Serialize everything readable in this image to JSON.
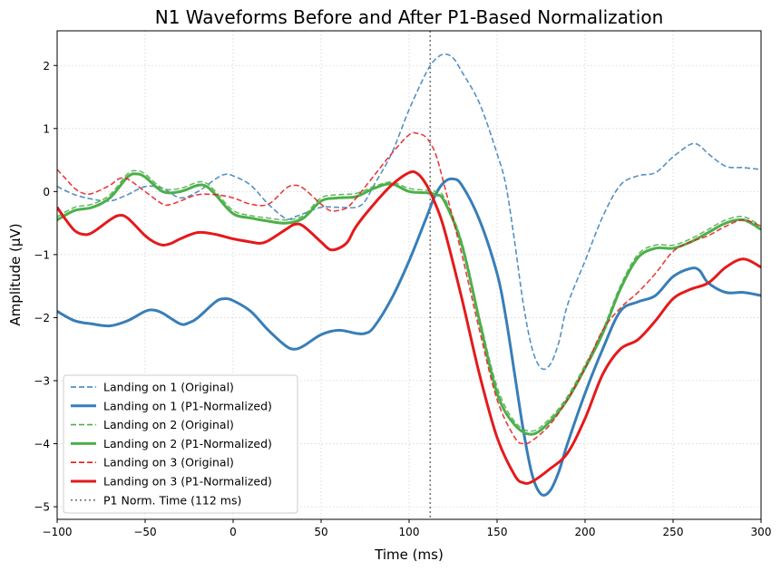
{
  "chart_data": {
    "type": "line",
    "title": "N1 Waveforms Before and After P1-Based Normalization",
    "xlabel": "Time (ms)",
    "ylabel": "Amplitude (μV)",
    "xlim": [
      -100,
      300
    ],
    "ylim": [
      -5.2,
      2.55
    ],
    "xticks": [
      -100,
      -50,
      0,
      50,
      100,
      150,
      200,
      250,
      300
    ],
    "yticks": [
      -5,
      -4,
      -3,
      -2,
      -1,
      0,
      1,
      2
    ],
    "grid": true,
    "legend_position": "lower-left",
    "vline": {
      "x": 112,
      "label": "P1 Norm. Time (112 ms)",
      "color": "#777777"
    },
    "series": [
      {
        "name": "Landing on 1 (Original)",
        "color": "#377eb8",
        "style": "dashed",
        "points": [
          [
            -100,
            0.08
          ],
          [
            -90,
            -0.05
          ],
          [
            -80,
            -0.12
          ],
          [
            -70,
            -0.15
          ],
          [
            -60,
            -0.05
          ],
          [
            -50,
            0.08
          ],
          [
            -40,
            0.05
          ],
          [
            -30,
            -0.1
          ],
          [
            -20,
            0.0
          ],
          [
            -10,
            0.2
          ],
          [
            -5,
            0.27
          ],
          [
            0,
            0.25
          ],
          [
            10,
            0.1
          ],
          [
            20,
            -0.2
          ],
          [
            30,
            -0.43
          ],
          [
            35,
            -0.4
          ],
          [
            40,
            -0.35
          ],
          [
            50,
            -0.25
          ],
          [
            60,
            -0.25
          ],
          [
            70,
            -0.25
          ],
          [
            75,
            -0.15
          ],
          [
            80,
            0.1
          ],
          [
            90,
            0.6
          ],
          [
            100,
            1.3
          ],
          [
            110,
            1.9
          ],
          [
            115,
            2.1
          ],
          [
            120,
            2.18
          ],
          [
            125,
            2.12
          ],
          [
            130,
            1.9
          ],
          [
            140,
            1.4
          ],
          [
            150,
            0.6
          ],
          [
            155,
            0.1
          ],
          [
            160,
            -0.8
          ],
          [
            165,
            -1.8
          ],
          [
            170,
            -2.5
          ],
          [
            175,
            -2.8
          ],
          [
            180,
            -2.75
          ],
          [
            185,
            -2.4
          ],
          [
            190,
            -1.8
          ],
          [
            200,
            -1.1
          ],
          [
            210,
            -0.4
          ],
          [
            220,
            0.1
          ],
          [
            230,
            0.25
          ],
          [
            240,
            0.3
          ],
          [
            250,
            0.55
          ],
          [
            260,
            0.75
          ],
          [
            265,
            0.73
          ],
          [
            270,
            0.6
          ],
          [
            280,
            0.4
          ],
          [
            290,
            0.38
          ],
          [
            300,
            0.35
          ]
        ]
      },
      {
        "name": "Landing on 1 (P1-Normalized)",
        "color": "#377eb8",
        "style": "solid",
        "points": [
          [
            -100,
            -1.9
          ],
          [
            -90,
            -2.05
          ],
          [
            -80,
            -2.1
          ],
          [
            -70,
            -2.13
          ],
          [
            -60,
            -2.05
          ],
          [
            -50,
            -1.9
          ],
          [
            -45,
            -1.88
          ],
          [
            -40,
            -1.93
          ],
          [
            -30,
            -2.1
          ],
          [
            -25,
            -2.08
          ],
          [
            -20,
            -2.0
          ],
          [
            -10,
            -1.75
          ],
          [
            -5,
            -1.7
          ],
          [
            0,
            -1.73
          ],
          [
            10,
            -1.9
          ],
          [
            20,
            -2.2
          ],
          [
            30,
            -2.45
          ],
          [
            35,
            -2.5
          ],
          [
            40,
            -2.45
          ],
          [
            50,
            -2.27
          ],
          [
            60,
            -2.2
          ],
          [
            70,
            -2.25
          ],
          [
            75,
            -2.25
          ],
          [
            80,
            -2.15
          ],
          [
            90,
            -1.7
          ],
          [
            100,
            -1.1
          ],
          [
            110,
            -0.4
          ],
          [
            115,
            -0.05
          ],
          [
            120,
            0.15
          ],
          [
            125,
            0.2
          ],
          [
            130,
            0.1
          ],
          [
            140,
            -0.45
          ],
          [
            150,
            -1.3
          ],
          [
            155,
            -2.0
          ],
          [
            160,
            -2.9
          ],
          [
            165,
            -3.8
          ],
          [
            170,
            -4.5
          ],
          [
            175,
            -4.8
          ],
          [
            180,
            -4.75
          ],
          [
            185,
            -4.45
          ],
          [
            190,
            -4.0
          ],
          [
            200,
            -3.2
          ],
          [
            210,
            -2.5
          ],
          [
            220,
            -1.9
          ],
          [
            230,
            -1.75
          ],
          [
            240,
            -1.65
          ],
          [
            250,
            -1.35
          ],
          [
            260,
            -1.22
          ],
          [
            265,
            -1.25
          ],
          [
            270,
            -1.45
          ],
          [
            280,
            -1.6
          ],
          [
            290,
            -1.6
          ],
          [
            300,
            -1.65
          ]
        ]
      },
      {
        "name": "Landing on 2 (Original)",
        "color": "#4daf4a",
        "style": "dashed",
        "points": [
          [
            -100,
            -0.4
          ],
          [
            -90,
            -0.25
          ],
          [
            -80,
            -0.2
          ],
          [
            -70,
            -0.05
          ],
          [
            -60,
            0.28
          ],
          [
            -55,
            0.33
          ],
          [
            -50,
            0.28
          ],
          [
            -40,
            0.05
          ],
          [
            -30,
            0.05
          ],
          [
            -20,
            0.15
          ],
          [
            -15,
            0.13
          ],
          [
            -10,
            0.0
          ],
          [
            0,
            -0.3
          ],
          [
            10,
            -0.38
          ],
          [
            20,
            -0.42
          ],
          [
            30,
            -0.45
          ],
          [
            40,
            -0.38
          ],
          [
            50,
            -0.1
          ],
          [
            60,
            -0.05
          ],
          [
            70,
            -0.03
          ],
          [
            80,
            0.08
          ],
          [
            90,
            0.15
          ],
          [
            100,
            0.05
          ],
          [
            110,
            0.02
          ],
          [
            115,
            0.0
          ],
          [
            120,
            -0.1
          ],
          [
            130,
            -0.8
          ],
          [
            140,
            -2.0
          ],
          [
            150,
            -3.1
          ],
          [
            160,
            -3.65
          ],
          [
            170,
            -3.8
          ],
          [
            180,
            -3.6
          ],
          [
            190,
            -3.25
          ],
          [
            200,
            -2.75
          ],
          [
            210,
            -2.2
          ],
          [
            220,
            -1.5
          ],
          [
            230,
            -1.0
          ],
          [
            240,
            -0.85
          ],
          [
            250,
            -0.85
          ],
          [
            260,
            -0.75
          ],
          [
            270,
            -0.6
          ],
          [
            280,
            -0.45
          ],
          [
            290,
            -0.4
          ],
          [
            300,
            -0.55
          ]
        ]
      },
      {
        "name": "Landing on 2 (P1-Normalized)",
        "color": "#4daf4a",
        "style": "solid",
        "points": [
          [
            -100,
            -0.45
          ],
          [
            -90,
            -0.3
          ],
          [
            -80,
            -0.25
          ],
          [
            -70,
            -0.1
          ],
          [
            -60,
            0.23
          ],
          [
            -55,
            0.28
          ],
          [
            -50,
            0.23
          ],
          [
            -40,
            0.0
          ],
          [
            -30,
            0.0
          ],
          [
            -20,
            0.1
          ],
          [
            -15,
            0.08
          ],
          [
            -10,
            -0.05
          ],
          [
            0,
            -0.35
          ],
          [
            10,
            -0.42
          ],
          [
            20,
            -0.47
          ],
          [
            30,
            -0.5
          ],
          [
            40,
            -0.42
          ],
          [
            50,
            -0.15
          ],
          [
            60,
            -0.1
          ],
          [
            70,
            -0.08
          ],
          [
            80,
            0.05
          ],
          [
            90,
            0.12
          ],
          [
            100,
            0.0
          ],
          [
            110,
            -0.02
          ],
          [
            115,
            -0.05
          ],
          [
            120,
            -0.15
          ],
          [
            130,
            -0.85
          ],
          [
            140,
            -2.05
          ],
          [
            150,
            -3.2
          ],
          [
            160,
            -3.7
          ],
          [
            170,
            -3.85
          ],
          [
            180,
            -3.65
          ],
          [
            190,
            -3.3
          ],
          [
            200,
            -2.8
          ],
          [
            210,
            -2.25
          ],
          [
            220,
            -1.55
          ],
          [
            230,
            -1.05
          ],
          [
            240,
            -0.9
          ],
          [
            250,
            -0.9
          ],
          [
            260,
            -0.8
          ],
          [
            270,
            -0.65
          ],
          [
            280,
            -0.5
          ],
          [
            290,
            -0.45
          ],
          [
            300,
            -0.6
          ]
        ]
      },
      {
        "name": "Landing on 3 (Original)",
        "color": "#e41a1c",
        "style": "dashed",
        "points": [
          [
            -100,
            0.35
          ],
          [
            -95,
            0.2
          ],
          [
            -90,
            0.05
          ],
          [
            -85,
            -0.03
          ],
          [
            -80,
            -0.03
          ],
          [
            -70,
            0.1
          ],
          [
            -65,
            0.2
          ],
          [
            -60,
            0.2
          ],
          [
            -50,
            0.0
          ],
          [
            -40,
            -0.2
          ],
          [
            -35,
            -0.2
          ],
          [
            -30,
            -0.15
          ],
          [
            -20,
            -0.05
          ],
          [
            -10,
            -0.05
          ],
          [
            0,
            -0.1
          ],
          [
            10,
            -0.2
          ],
          [
            20,
            -0.2
          ],
          [
            30,
            0.05
          ],
          [
            35,
            0.1
          ],
          [
            40,
            0.05
          ],
          [
            50,
            -0.2
          ],
          [
            55,
            -0.3
          ],
          [
            60,
            -0.3
          ],
          [
            65,
            -0.25
          ],
          [
            70,
            -0.1
          ],
          [
            80,
            0.25
          ],
          [
            90,
            0.6
          ],
          [
            100,
            0.9
          ],
          [
            105,
            0.92
          ],
          [
            110,
            0.85
          ],
          [
            115,
            0.6
          ],
          [
            120,
            0.1
          ],
          [
            130,
            -1.0
          ],
          [
            140,
            -2.2
          ],
          [
            150,
            -3.3
          ],
          [
            160,
            -3.9
          ],
          [
            165,
            -4.0
          ],
          [
            170,
            -3.95
          ],
          [
            180,
            -3.7
          ],
          [
            190,
            -3.3
          ],
          [
            200,
            -2.8
          ],
          [
            210,
            -2.2
          ],
          [
            220,
            -1.85
          ],
          [
            230,
            -1.6
          ],
          [
            240,
            -1.3
          ],
          [
            250,
            -0.95
          ],
          [
            260,
            -0.8
          ],
          [
            270,
            -0.7
          ],
          [
            280,
            -0.55
          ],
          [
            290,
            -0.45
          ],
          [
            300,
            -0.55
          ]
        ]
      },
      {
        "name": "Landing on 3 (P1-Normalized)",
        "color": "#e41a1c",
        "style": "solid",
        "points": [
          [
            -100,
            -0.25
          ],
          [
            -95,
            -0.45
          ],
          [
            -90,
            -0.62
          ],
          [
            -85,
            -0.68
          ],
          [
            -80,
            -0.65
          ],
          [
            -70,
            -0.45
          ],
          [
            -65,
            -0.38
          ],
          [
            -60,
            -0.42
          ],
          [
            -50,
            -0.7
          ],
          [
            -45,
            -0.8
          ],
          [
            -40,
            -0.85
          ],
          [
            -35,
            -0.82
          ],
          [
            -30,
            -0.75
          ],
          [
            -20,
            -0.65
          ],
          [
            -10,
            -0.68
          ],
          [
            0,
            -0.75
          ],
          [
            10,
            -0.8
          ],
          [
            15,
            -0.82
          ],
          [
            20,
            -0.78
          ],
          [
            30,
            -0.6
          ],
          [
            35,
            -0.52
          ],
          [
            40,
            -0.55
          ],
          [
            50,
            -0.8
          ],
          [
            55,
            -0.92
          ],
          [
            60,
            -0.9
          ],
          [
            65,
            -0.8
          ],
          [
            70,
            -0.55
          ],
          [
            80,
            -0.2
          ],
          [
            90,
            0.1
          ],
          [
            100,
            0.3
          ],
          [
            105,
            0.28
          ],
          [
            110,
            0.1
          ],
          [
            115,
            -0.2
          ],
          [
            120,
            -0.6
          ],
          [
            130,
            -1.7
          ],
          [
            140,
            -2.9
          ],
          [
            150,
            -3.9
          ],
          [
            160,
            -4.5
          ],
          [
            165,
            -4.62
          ],
          [
            170,
            -4.6
          ],
          [
            180,
            -4.4
          ],
          [
            190,
            -4.15
          ],
          [
            200,
            -3.6
          ],
          [
            210,
            -2.9
          ],
          [
            220,
            -2.5
          ],
          [
            230,
            -2.35
          ],
          [
            240,
            -2.05
          ],
          [
            250,
            -1.7
          ],
          [
            260,
            -1.55
          ],
          [
            270,
            -1.45
          ],
          [
            280,
            -1.2
          ],
          [
            290,
            -1.07
          ],
          [
            300,
            -1.2
          ]
        ]
      }
    ]
  }
}
